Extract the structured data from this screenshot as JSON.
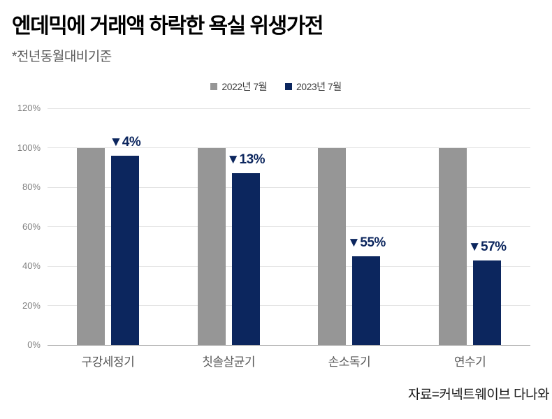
{
  "header": {
    "title": "엔데믹에 거래액 하락한 욕실 위생가전",
    "subtitle": "*전년동월대비기준"
  },
  "legend": {
    "items": [
      {
        "label": "2022년 7월",
        "color": "#969696"
      },
      {
        "label": "2023년 7월",
        "color": "#0c265e"
      }
    ]
  },
  "chart_data": {
    "type": "bar",
    "title": "엔데믹에 거래액 하락한 욕실 위생가전",
    "subtitle": "*전년동월대비기준",
    "categories": [
      "구강세정기",
      "칫솔살균기",
      "손소독기",
      "연수기"
    ],
    "series": [
      {
        "name": "2022년 7월",
        "color": "#969696",
        "values": [
          100,
          100,
          100,
          100
        ]
      },
      {
        "name": "2023년 7월",
        "color": "#0c265e",
        "values": [
          96,
          87,
          45,
          43
        ]
      }
    ],
    "annotations": [
      "▼4%",
      "▼13%",
      "▼55%",
      "▼57%"
    ],
    "ylim": [
      0,
      120
    ],
    "ytick_step": 20,
    "ytick_suffix": "%",
    "grid": true,
    "legend_position": "top"
  },
  "source": "자료=커넥트웨이브 다나와",
  "colors": {
    "grid": "#e4e4e4",
    "axis": "#a8a8a8",
    "tick_text": "#7f7f7f",
    "category_text": "#595959",
    "annotation_text": "#0c265e",
    "legend_text": "#404040"
  }
}
